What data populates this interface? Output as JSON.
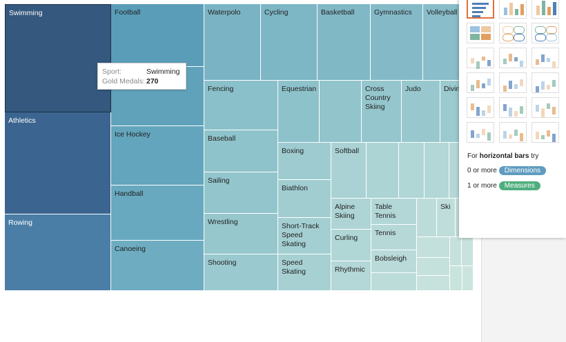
{
  "treemap": {
    "tiles": [
      "Swimming",
      "Athletics",
      "Rowing",
      "Football",
      "Ice Hockey",
      "Handball",
      "Canoeing",
      "Waterpolo",
      "Cycling",
      "Basketball",
      "Gymnastics",
      "Volleyball",
      "Fencing",
      "Equestrian",
      "Cross Country Skiing",
      "Judo",
      "Diving",
      "Baseball",
      "Sailing",
      "Wrestling",
      "Shooting",
      "Boxing",
      "Biathlon",
      "Short-Track Speed Skating",
      "Speed Skating",
      "Softball",
      "Alpine Skiing",
      "Curling",
      "Rhythmic",
      "Table Tennis",
      "Tennis",
      "Bobsleigh",
      "Ski"
    ]
  },
  "tooltip": {
    "rows": [
      {
        "label": "Sport:",
        "value": "Swimming"
      },
      {
        "label": "Gold Medals:",
        "value": "270"
      }
    ]
  },
  "show_me": {
    "hint": {
      "prefix": "For",
      "emphasis": "horizontal bars",
      "suffix": "try"
    },
    "requirements": [
      {
        "text": "0 or more",
        "pill": "Dimensions"
      },
      {
        "text": "1 or more",
        "pill": "Measures"
      }
    ]
  }
}
